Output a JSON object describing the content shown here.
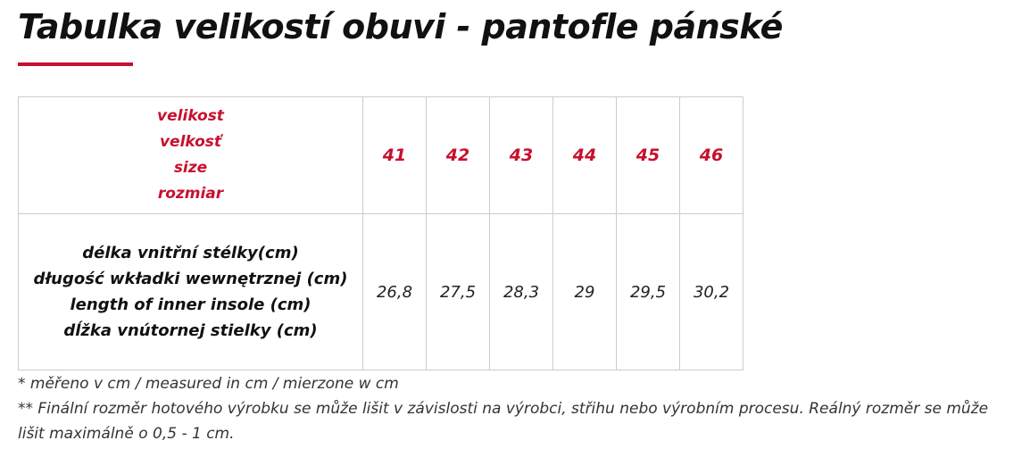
{
  "header": {
    "title": "Tabulka velikostí obuvi - pantofle pánské"
  },
  "table": {
    "rows": [
      [
        [
          "velikost",
          "velkosť",
          "size",
          "rozmiar"
        ],
        "41",
        "42",
        "43",
        "44",
        "45",
        "46"
      ],
      [
        [
          "délka vnitřní stélky(cm)",
          "długość wkładki wewnętrznej (cm)",
          "length of inner insole (cm)",
          "dĺžka vnútornej stielky (cm)"
        ],
        "26,8",
        "27,5",
        "28,3",
        "29",
        "29,5",
        "30,2"
      ]
    ]
  },
  "notes": [
    "* měřeno v cm / measured in cm / mierzone w cm",
    "** Finální rozměr hotového výrobku se může lišit v závislosti na výrobci, střihu nebo výrobním procesu. Reálný rozměr se může lišit maximálně o 0,5 - 1 cm."
  ]
}
